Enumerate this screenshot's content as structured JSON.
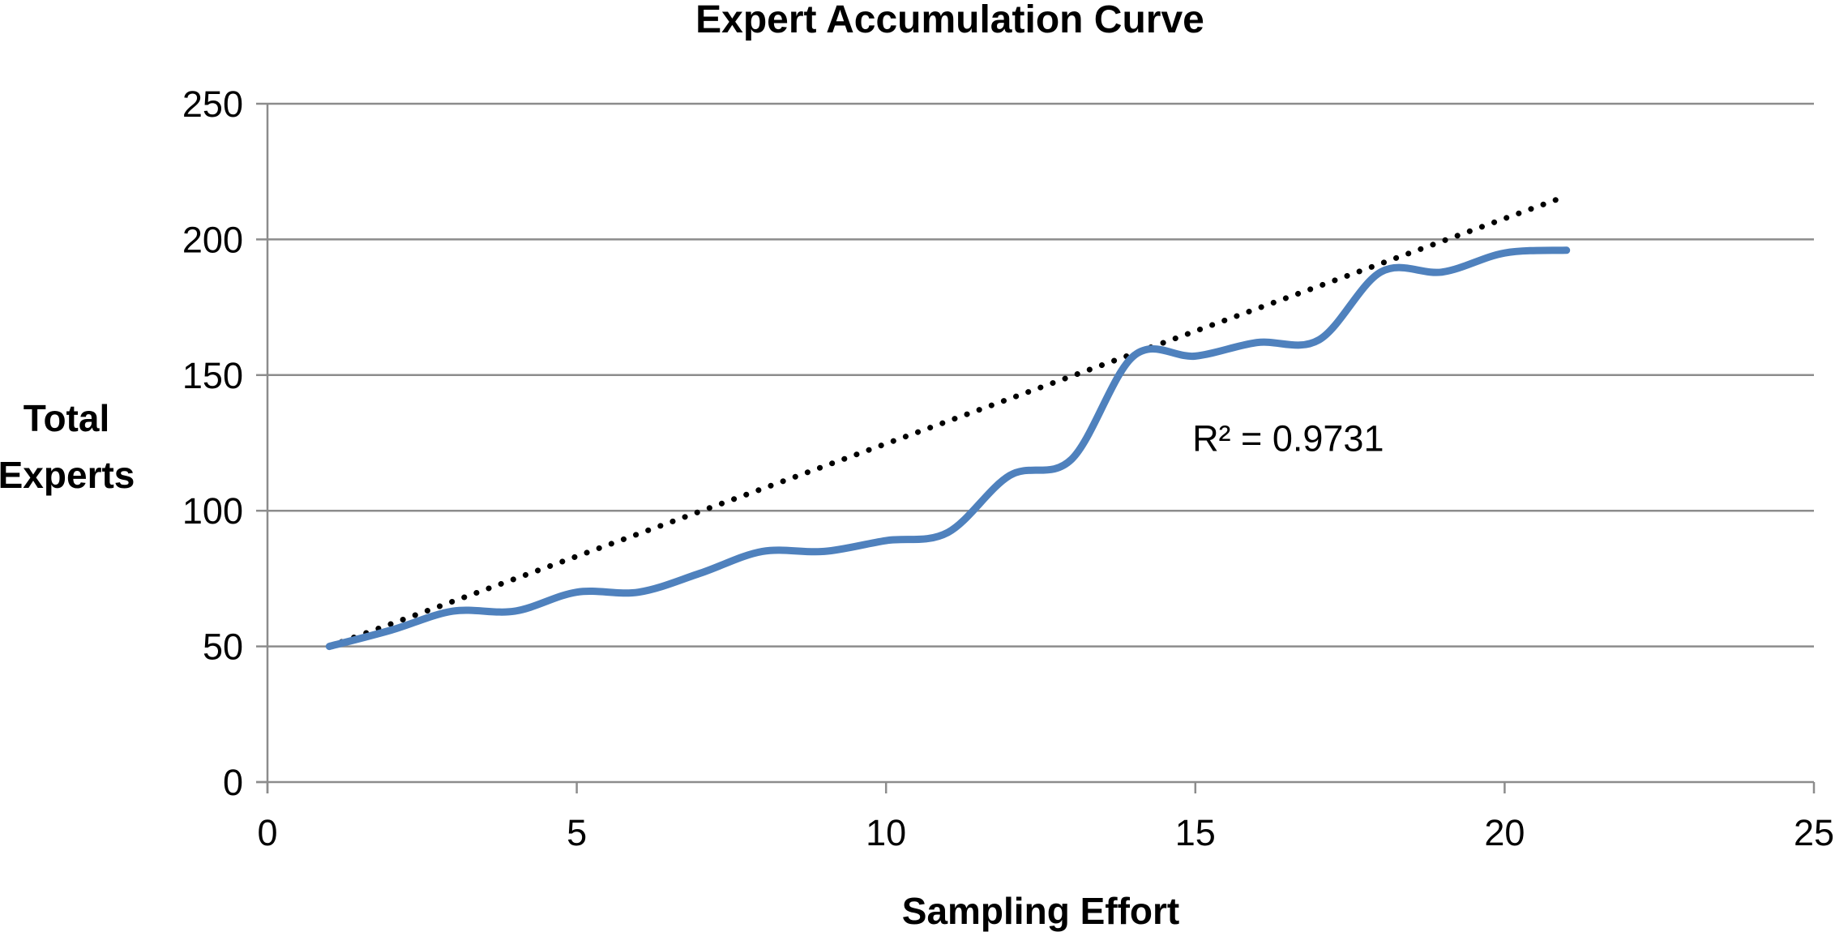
{
  "chart_data": {
    "type": "line",
    "title": "Expert Accumulation Curve",
    "xlabel": "Sampling Effort",
    "ylabel": [
      "Total",
      "Experts"
    ],
    "xlim": [
      0,
      25
    ],
    "ylim": [
      0,
      250
    ],
    "x_ticks": [
      0,
      5,
      10,
      15,
      20,
      25
    ],
    "y_ticks": [
      0,
      50,
      100,
      150,
      200,
      250
    ],
    "x_tick_labels": [
      "0",
      "5",
      "10",
      "15",
      "20",
      "25"
    ],
    "y_tick_labels": [
      "0",
      "50",
      "100",
      "150",
      "200",
      "250"
    ],
    "grid": "horizontal",
    "series": [
      {
        "name": "",
        "color": "#4F81BD",
        "x": [
          1,
          2,
          3,
          4,
          5,
          6,
          7,
          8,
          9,
          10,
          11,
          12,
          13,
          14,
          15,
          16,
          17,
          18,
          19,
          20,
          21
        ],
        "values": [
          50,
          56,
          63,
          63,
          70,
          70,
          77,
          85,
          85,
          89,
          92,
          113,
          119,
          157,
          157,
          162,
          163,
          188,
          188,
          195,
          196
        ]
      }
    ],
    "trendline": {
      "type": "linear",
      "style": "dotted",
      "color": "#000000",
      "x_range": [
        1,
        21
      ],
      "start_value": 50,
      "end_value": 216,
      "annotation": "R² = 0.9731",
      "annotation_x": 16.5,
      "annotation_y": 122
    }
  }
}
